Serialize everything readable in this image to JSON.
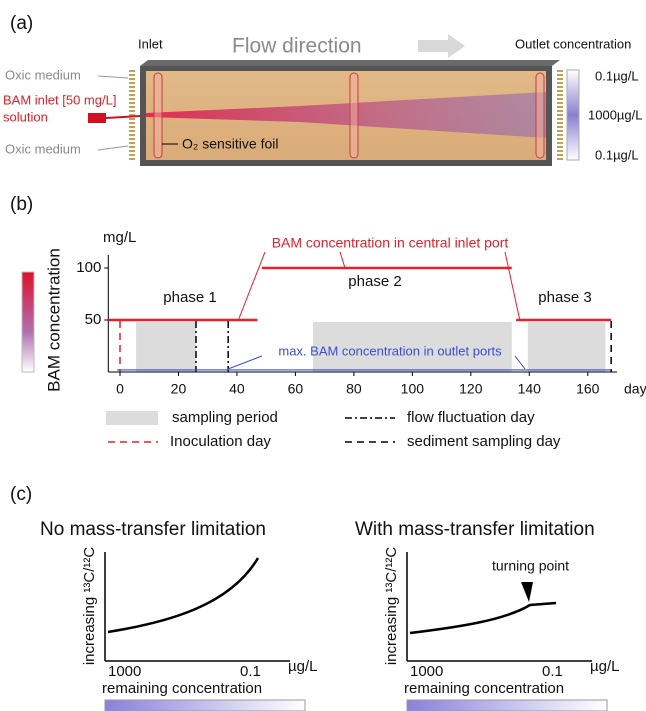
{
  "panel_a": {
    "label": "(a)",
    "inlet": "Inlet",
    "flow_direction": "Flow direction",
    "outlet": "Outlet concentration",
    "left_labels": [
      "Oxic medium",
      "BAM inlet [50 mg/L]",
      "solution",
      "Oxic medium"
    ],
    "foil": "O₂ sensitive foil",
    "scale_labels": [
      "0.1µg/L",
      "1000µg/L",
      "0.1µg/L"
    ]
  },
  "chart_data": {
    "type": "line",
    "panel_label": "(b)",
    "y_unit": "mg/L",
    "x_label": "day",
    "colorbar_label": "BAM concentration",
    "xlim": [
      -4,
      170
    ],
    "ylim": [
      0,
      110
    ],
    "xticks": [
      0,
      20,
      40,
      60,
      80,
      100,
      120,
      140,
      160
    ],
    "yticks": [
      50,
      100
    ],
    "series": [
      {
        "name": "BAM concentration in central inlet port",
        "color": "#e8202a",
        "x": [
          -4,
          47,
          47.7,
          48.5,
          134,
          134.7,
          135.5,
          168
        ],
        "values": [
          50,
          50,
          null,
          100,
          100,
          null,
          50,
          50
        ]
      },
      {
        "name": "max. BAM concentration in outlet ports",
        "color": "#3a4fd0",
        "x": [
          -1,
          168
        ],
        "values": [
          2,
          2
        ]
      }
    ],
    "sampling_periods": {
      "name": "sampling period",
      "color": "#dcdcdc",
      "ranges": [
        [
          5.5,
          26
        ],
        [
          66,
          134
        ],
        [
          139.5,
          166
        ]
      ]
    },
    "events": [
      {
        "name": "Inoculation day",
        "color": "#e8202a",
        "style": "dashed",
        "days": [
          0
        ]
      },
      {
        "name": "flow fluctuation day",
        "color": "#000000",
        "style": "dashdot",
        "days": [
          26,
          37
        ]
      },
      {
        "name": "sediment sampling day",
        "color": "#000000",
        "style": "dashed",
        "days": [
          168
        ]
      }
    ],
    "phases": [
      "phase 1",
      "phase 2",
      "phase 3"
    ]
  },
  "panel_c": {
    "label": "(c)",
    "plots": [
      {
        "title": "No mass-transfer limitation",
        "y_label": "increasing ¹³C/¹²C",
        "x_labels": [
          "1000",
          "0.1"
        ],
        "x_unit": "µg/L",
        "x_label": "remaining concentration"
      },
      {
        "title": "With mass-transfer limitation",
        "y_label": "increasing ¹³C/¹²C",
        "x_labels": [
          "1000",
          "0.1"
        ],
        "x_unit": "µg/L",
        "x_label": "remaining concentration",
        "annotation": "turning point"
      }
    ]
  }
}
